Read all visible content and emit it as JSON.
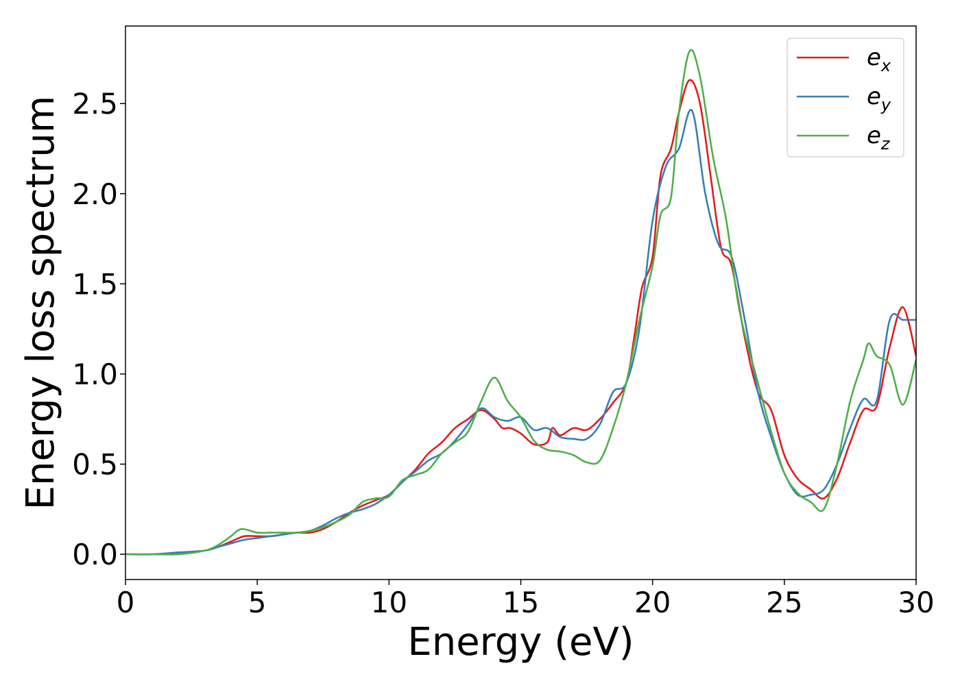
{
  "chart_data": {
    "type": "line",
    "title": "",
    "xlabel": "Energy (eV)",
    "ylabel": "Energy loss spectrum",
    "xlim": [
      0,
      30
    ],
    "ylim": [
      -0.14,
      2.93
    ],
    "xticks": [
      0,
      5,
      10,
      15,
      20,
      25,
      30
    ],
    "xtick_labels": [
      "0",
      "5",
      "10",
      "15",
      "20",
      "25",
      "30"
    ],
    "yticks": [
      0.0,
      0.5,
      1.0,
      1.5,
      2.0,
      2.5
    ],
    "ytick_labels": [
      "0.0",
      "0.5",
      "1.0",
      "1.5",
      "2.0",
      "2.5"
    ],
    "grid": false,
    "legend_position": "top-right",
    "series": [
      {
        "name": "e_x",
        "legend_base": "e",
        "legend_sub": "x",
        "color": "#e41a1c",
        "points": [
          [
            0,
            0.0
          ],
          [
            1,
            0.0
          ],
          [
            2,
            0.01
          ],
          [
            3,
            0.02
          ],
          [
            3.5,
            0.04
          ],
          [
            4,
            0.07
          ],
          [
            4.5,
            0.1
          ],
          [
            5,
            0.1
          ],
          [
            5.5,
            0.1
          ],
          [
            6,
            0.11
          ],
          [
            6.5,
            0.12
          ],
          [
            7,
            0.12
          ],
          [
            7.5,
            0.14
          ],
          [
            8,
            0.18
          ],
          [
            8.5,
            0.23
          ],
          [
            9,
            0.27
          ],
          [
            9.5,
            0.3
          ],
          [
            10,
            0.33
          ],
          [
            10.5,
            0.4
          ],
          [
            11,
            0.47
          ],
          [
            11.5,
            0.56
          ],
          [
            12,
            0.62
          ],
          [
            12.5,
            0.7
          ],
          [
            13,
            0.75
          ],
          [
            13.5,
            0.8
          ],
          [
            14,
            0.75
          ],
          [
            14.3,
            0.7
          ],
          [
            14.6,
            0.7
          ],
          [
            15,
            0.67
          ],
          [
            15.5,
            0.61
          ],
          [
            16,
            0.62
          ],
          [
            16.2,
            0.7
          ],
          [
            16.5,
            0.66
          ],
          [
            17,
            0.7
          ],
          [
            17.5,
            0.69
          ],
          [
            18,
            0.75
          ],
          [
            18.5,
            0.84
          ],
          [
            19,
            0.95
          ],
          [
            19.3,
            1.2
          ],
          [
            19.6,
            1.48
          ],
          [
            20,
            1.65
          ],
          [
            20.3,
            2.1
          ],
          [
            20.7,
            2.25
          ],
          [
            21,
            2.45
          ],
          [
            21.4,
            2.63
          ],
          [
            21.8,
            2.5
          ],
          [
            22.2,
            2.1
          ],
          [
            22.6,
            1.7
          ],
          [
            23,
            1.6
          ],
          [
            23.5,
            1.2
          ],
          [
            24,
            0.9
          ],
          [
            24.5,
            0.8
          ],
          [
            25,
            0.55
          ],
          [
            25.5,
            0.42
          ],
          [
            26,
            0.36
          ],
          [
            26.5,
            0.31
          ],
          [
            27,
            0.42
          ],
          [
            27.5,
            0.62
          ],
          [
            28,
            0.8
          ],
          [
            28.5,
            0.82
          ],
          [
            29,
            1.15
          ],
          [
            29.5,
            1.37
          ],
          [
            30,
            1.1
          ]
        ]
      },
      {
        "name": "e_y",
        "legend_base": "e",
        "legend_sub": "y",
        "color": "#377eb8",
        "points": [
          [
            0,
            0.0
          ],
          [
            1,
            0.0
          ],
          [
            2,
            0.01
          ],
          [
            3,
            0.02
          ],
          [
            3.5,
            0.04
          ],
          [
            4,
            0.06
          ],
          [
            4.5,
            0.08
          ],
          [
            5,
            0.09
          ],
          [
            5.5,
            0.1
          ],
          [
            6,
            0.11
          ],
          [
            6.5,
            0.12
          ],
          [
            7,
            0.13
          ],
          [
            7.5,
            0.16
          ],
          [
            8,
            0.2
          ],
          [
            8.5,
            0.23
          ],
          [
            9,
            0.25
          ],
          [
            9.5,
            0.28
          ],
          [
            10,
            0.33
          ],
          [
            10.5,
            0.4
          ],
          [
            11,
            0.46
          ],
          [
            11.5,
            0.52
          ],
          [
            12,
            0.56
          ],
          [
            12.5,
            0.63
          ],
          [
            13,
            0.72
          ],
          [
            13.5,
            0.81
          ],
          [
            14,
            0.76
          ],
          [
            14.5,
            0.74
          ],
          [
            15,
            0.76
          ],
          [
            15.5,
            0.69
          ],
          [
            16,
            0.7
          ],
          [
            16.5,
            0.65
          ],
          [
            17,
            0.64
          ],
          [
            17.5,
            0.64
          ],
          [
            18,
            0.72
          ],
          [
            18.5,
            0.9
          ],
          [
            19,
            0.95
          ],
          [
            19.5,
            1.25
          ],
          [
            20,
            1.85
          ],
          [
            20.5,
            2.15
          ],
          [
            21,
            2.25
          ],
          [
            21.5,
            2.46
          ],
          [
            22,
            2.0
          ],
          [
            22.5,
            1.72
          ],
          [
            23,
            1.65
          ],
          [
            23.5,
            1.3
          ],
          [
            24,
            0.9
          ],
          [
            24.5,
            0.65
          ],
          [
            25,
            0.45
          ],
          [
            25.5,
            0.33
          ],
          [
            26,
            0.33
          ],
          [
            26.5,
            0.36
          ],
          [
            27,
            0.5
          ],
          [
            27.5,
            0.7
          ],
          [
            28,
            0.86
          ],
          [
            28.5,
            0.85
          ],
          [
            29,
            1.3
          ],
          [
            29.5,
            1.3
          ],
          [
            30,
            1.3
          ]
        ]
      },
      {
        "name": "e_z",
        "legend_base": "e",
        "legend_sub": "z",
        "color": "#4daf4a",
        "points": [
          [
            0,
            0.0
          ],
          [
            1,
            0.0
          ],
          [
            2,
            0.0
          ],
          [
            3,
            0.02
          ],
          [
            3.5,
            0.05
          ],
          [
            4,
            0.1
          ],
          [
            4.4,
            0.14
          ],
          [
            5,
            0.12
          ],
          [
            5.5,
            0.12
          ],
          [
            6,
            0.12
          ],
          [
            6.5,
            0.12
          ],
          [
            7,
            0.13
          ],
          [
            7.5,
            0.15
          ],
          [
            8,
            0.18
          ],
          [
            8.5,
            0.22
          ],
          [
            9,
            0.29
          ],
          [
            9.5,
            0.31
          ],
          [
            10,
            0.32
          ],
          [
            10.5,
            0.41
          ],
          [
            11,
            0.44
          ],
          [
            11.5,
            0.47
          ],
          [
            12,
            0.56
          ],
          [
            12.5,
            0.62
          ],
          [
            13,
            0.68
          ],
          [
            13.5,
            0.85
          ],
          [
            14,
            0.98
          ],
          [
            14.5,
            0.85
          ],
          [
            15,
            0.76
          ],
          [
            15.5,
            0.63
          ],
          [
            16,
            0.58
          ],
          [
            16.5,
            0.57
          ],
          [
            17,
            0.55
          ],
          [
            17.5,
            0.51
          ],
          [
            18,
            0.52
          ],
          [
            18.5,
            0.7
          ],
          [
            19,
            0.95
          ],
          [
            19.5,
            1.3
          ],
          [
            20,
            1.6
          ],
          [
            20.3,
            1.88
          ],
          [
            20.7,
            1.98
          ],
          [
            21,
            2.45
          ],
          [
            21.4,
            2.79
          ],
          [
            21.8,
            2.65
          ],
          [
            22.3,
            2.2
          ],
          [
            22.8,
            1.85
          ],
          [
            23.3,
            1.35
          ],
          [
            24,
            0.95
          ],
          [
            24.5,
            0.68
          ],
          [
            25,
            0.45
          ],
          [
            25.5,
            0.34
          ],
          [
            26,
            0.29
          ],
          [
            26.5,
            0.25
          ],
          [
            27,
            0.5
          ],
          [
            27.5,
            0.85
          ],
          [
            28,
            1.08
          ],
          [
            28.2,
            1.17
          ],
          [
            28.5,
            1.1
          ],
          [
            29,
            1.05
          ],
          [
            29.5,
            0.83
          ],
          [
            30,
            1.08
          ]
        ]
      }
    ]
  }
}
